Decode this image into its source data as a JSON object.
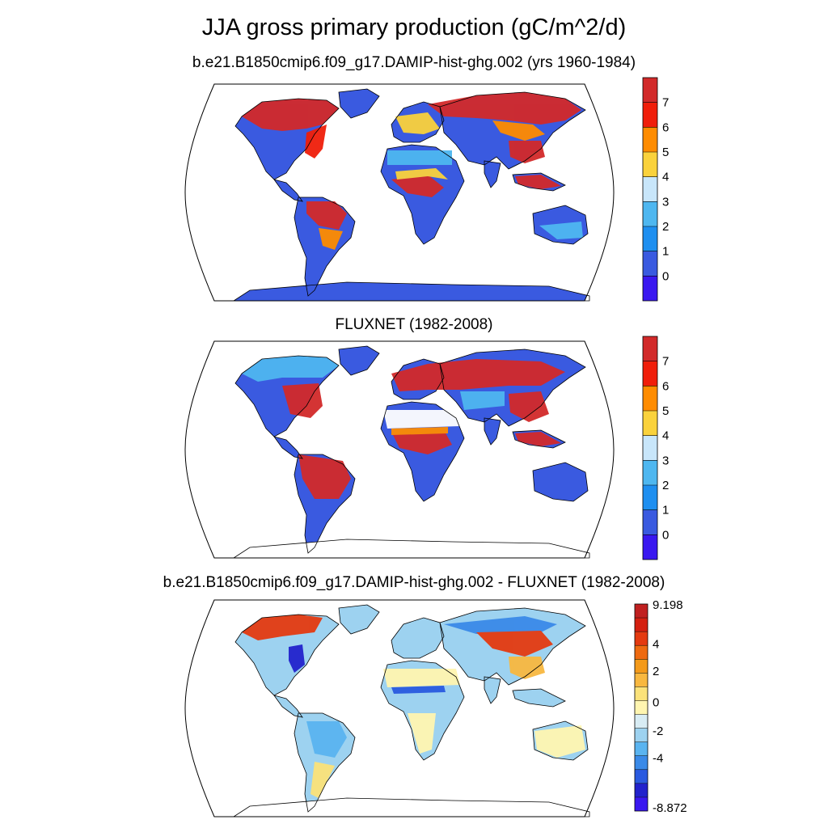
{
  "title": "JJA gross primary production (gC/m^2/d)",
  "panels": [
    {
      "id": "model",
      "title": "b.e21.B1850cmip6.f09_g17.DAMIP-hist-ghg.002 (yrs 1960-1984)",
      "colorbar": {
        "colors": [
          "#3a18f0",
          "#3a5ae0",
          "#1e8ff0",
          "#4eb7f0",
          "#c8e6fa",
          "#fad23c",
          "#ff8c00",
          "#f01e0a",
          "#d22a2a"
        ],
        "labels": [
          "0",
          "1",
          "2",
          "3",
          "4",
          "5",
          "6",
          "7"
        ]
      }
    },
    {
      "id": "obs",
      "title": "FLUXNET (1982-2008)",
      "colorbar": {
        "colors": [
          "#3a18f0",
          "#3a5ae0",
          "#1e8ff0",
          "#4eb7f0",
          "#c8e6fa",
          "#fad23c",
          "#ff8c00",
          "#f01e0a",
          "#d22a2a"
        ],
        "labels": [
          "0",
          "1",
          "2",
          "3",
          "4",
          "5",
          "6",
          "7"
        ]
      }
    },
    {
      "id": "diff",
      "title": "b.e21.B1850cmip6.f09_g17.DAMIP-hist-ghg.002 - FLUXNET (1982-2008)",
      "colorbar": {
        "colors": [
          "#3a18f0",
          "#2222cc",
          "#2a5ae0",
          "#3a8ae8",
          "#5ab4f0",
          "#9dd2f0",
          "#d8ecf4",
          "#fff5b0",
          "#fbe27a",
          "#f8b840",
          "#f49a1a",
          "#ee6a10",
          "#e43a10",
          "#d42010",
          "#c02020"
        ],
        "labels": [
          "9.198",
          "4",
          "2",
          "0",
          "-2",
          "-4",
          "-8.872"
        ]
      }
    }
  ],
  "chart_data": {
    "type": "heatmap",
    "title": "JJA gross primary production (gC/m^2/d)",
    "projection": "Robinson",
    "panels": [
      {
        "name": "b.e21.B1850cmip6.f09_g17.DAMIP-hist-ghg.002 (yrs 1960-1984)",
        "colorbar_levels": [
          0,
          1,
          2,
          3,
          4,
          5,
          6,
          7
        ],
        "regions": {
          "Amazon": 7,
          "Central Africa": 6.5,
          "Southeast Asia": 7,
          "Boreal Eurasia": 7,
          "Boreal North America": 7,
          "Sahara": 0.5,
          "Australia interior": 1,
          "Central Asia": 1,
          "Antarctica": 0.5
        }
      },
      {
        "name": "FLUXNET (1982-2008)",
        "colorbar_levels": [
          0,
          1,
          2,
          3,
          4,
          5,
          6,
          7
        ],
        "regions": {
          "Amazon": 7.5,
          "Central Africa": 6.5,
          "Southeast Asia": 7,
          "Europe": 7,
          "Eastern North America": 7.5,
          "Sahara": null,
          "Australia interior": 0.5,
          "Central Asia": 1.5,
          "Antarctica": null
        }
      },
      {
        "name": "b.e21.B1850cmip6.f09_g17.DAMIP-hist-ghg.002 - FLUXNET (1982-2008)",
        "range": [
          -8.872,
          9.198
        ],
        "colorbar_labels": [
          9.198,
          4,
          2,
          0,
          -2,
          -4,
          -8.872
        ],
        "regions": {
          "Siberia": 4,
          "East Asia": 5,
          "Canada/Alaska": 4,
          "US Midwest": -5,
          "Sahel": -4,
          "Amazon": -1,
          "Europe": -1.5,
          "Australia": 0,
          "Sahara": 0
        }
      }
    ]
  }
}
